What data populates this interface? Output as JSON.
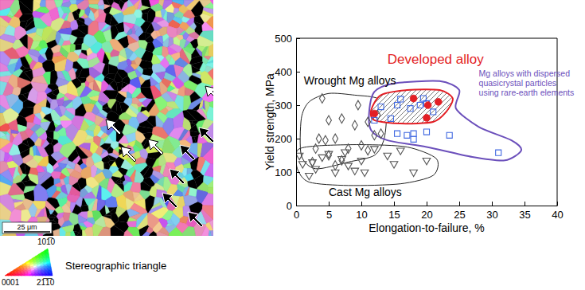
{
  "chart_data": {
    "type": "scatter",
    "x_label": "Elongation-to-failure, %",
    "y_label": "Yield strength, MPa",
    "xlim": [
      0,
      40
    ],
    "ylim": [
      0,
      500
    ],
    "xticks": [
      0,
      5,
      10,
      15,
      20,
      25,
      30,
      35,
      40
    ],
    "yticks": [
      0,
      100,
      200,
      300,
      400,
      500
    ],
    "grid": false,
    "series": [
      {
        "name": "Wrought Mg alloys",
        "color": "#555555",
        "marker": "diamond-open",
        "region_color": "#222222",
        "x": [
          4,
          3.5,
          5,
          7,
          9,
          3,
          4.5,
          6,
          5,
          8,
          10,
          11,
          12,
          13,
          7,
          6,
          11,
          2.5,
          9.5,
          12.5
        ],
        "y": [
          320,
          200,
          255,
          260,
          240,
          170,
          195,
          200,
          150,
          170,
          180,
          165,
          210,
          215,
          135,
          120,
          250,
          130,
          300,
          270
        ],
        "region_x": [
          0.8,
          2,
          5,
          9,
          12.5,
          13.8,
          13.5,
          12,
          8,
          3,
          0.8
        ],
        "region_y": [
          260,
          310,
          335,
          330,
          320,
          280,
          200,
          150,
          130,
          110,
          150
        ],
        "label_x": 1.2,
        "label_y": 362
      },
      {
        "name": "Cast Mg alloys",
        "color": "#555555",
        "marker": "triangle-down-open",
        "region_color": "#222222",
        "x": [
          0.5,
          1,
          2,
          2.5,
          3,
          4,
          5,
          6,
          7,
          8,
          9,
          10,
          12,
          14,
          15,
          16,
          18,
          20,
          10.5,
          7.5
        ],
        "y": [
          150,
          125,
          90,
          130,
          110,
          145,
          155,
          100,
          140,
          120,
          105,
          135,
          170,
          150,
          125,
          165,
          100,
          135,
          100,
          160
        ],
        "region_x": [
          0.2,
          3,
          10,
          17,
          21.5,
          21,
          16,
          8,
          2,
          0.2
        ],
        "region_y": [
          165,
          178,
          182,
          175,
          140,
          90,
          65,
          60,
          70,
          110
        ],
        "label_x": 5,
        "label_y": 28
      },
      {
        "name": "Mg alloys with dispersed\nquasicrystal particles\nusing rare-earth elements",
        "color": "#4169e1",
        "marker": "square-open",
        "region_color": "#6b4fbb",
        "x": [
          12,
          13,
          14.5,
          15.5,
          16,
          17,
          15.5,
          18,
          18,
          19,
          19.5,
          20,
          20,
          23.5,
          31,
          17.5,
          21
        ],
        "y": [
          255,
          295,
          260,
          300,
          318,
          210,
          215,
          215,
          198,
          300,
          320,
          305,
          220,
          210,
          158,
          290,
          280
        ],
        "region_x": [
          11.2,
          12,
          15,
          22,
          25,
          24.5,
          28,
          33,
          34.5,
          32,
          27,
          20,
          14,
          11.5
        ],
        "region_y": [
          280,
          340,
          365,
          372,
          345,
          290,
          235,
          195,
          165,
          135,
          145,
          175,
          195,
          225
        ],
        "label_x": 28,
        "label_y": 385
      },
      {
        "name": "Developed alloy",
        "color": "#e31e24",
        "marker": "circle",
        "region_color": "#e31e24",
        "x": [
          12,
          18,
          20.2,
          20,
          21.8
        ],
        "y": [
          275,
          320,
          300,
          262,
          310
        ],
        "region_x": [
          11.5,
          13,
          17,
          22,
          24,
          23,
          21,
          16,
          12
        ],
        "region_y": [
          285,
          330,
          345,
          345,
          320,
          280,
          250,
          245,
          255
        ],
        "label_x": 14,
        "label_y": 425
      }
    ]
  },
  "micrograph": {
    "scale_bar": "25 μm",
    "legend_title": "Stereographic triangle",
    "pole_top": "101̅0",
    "pole_left": "0001",
    "pole_right": "21̅1̅0"
  }
}
